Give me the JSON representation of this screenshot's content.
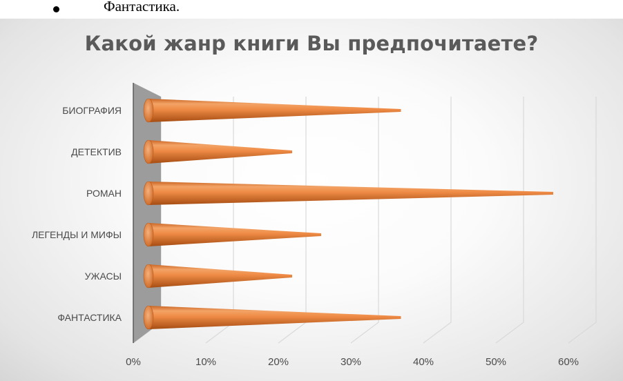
{
  "bullet": {
    "text": "Фантастика."
  },
  "chart_data": {
    "type": "bar",
    "orientation": "horizontal",
    "shape": "cone",
    "title": "Какой жанр книги Вы предпочитаете?",
    "categories": [
      "БИОГРАФИЯ",
      "ДЕТЕКТИВ",
      "РОМАН",
      "ЛЕГЕНДЫ И МИФЫ",
      "УЖАСЫ",
      "ФАНТАСТИКА"
    ],
    "values": [
      35,
      20,
      56,
      24,
      20,
      35
    ],
    "x_ticks": [
      "0%",
      "10%",
      "20%",
      "30%",
      "40%",
      "50%",
      "60%"
    ],
    "xlim": [
      0,
      60
    ],
    "xlabel": "",
    "ylabel": "",
    "grid": true,
    "bar_color": "#ee8a45",
    "wall_color": "#9c9c9c"
  }
}
